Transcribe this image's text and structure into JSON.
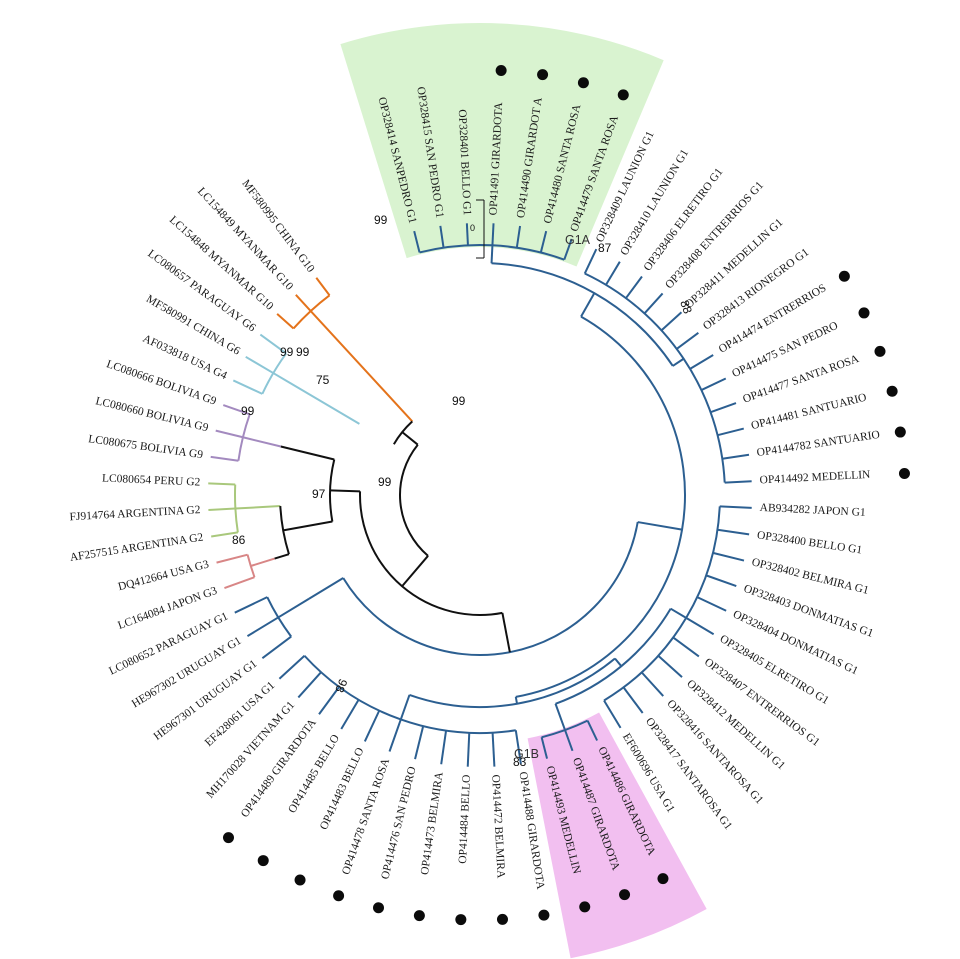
{
  "highlight_colors": {
    "G1A": "#d9f3d0",
    "G1B": "#f2bff0"
  },
  "genotype_colors": {
    "G1": "#2c5f91",
    "G10": "#e4731b",
    "G6": "#8cc6d6",
    "G9": "#a38abf",
    "G2": "#a9c87c",
    "G3": "#d88686",
    "backbone": "#111111"
  },
  "marker_color": "#0b0b0b",
  "scale_label": "0",
  "clade_labels": {
    "g1a": "G1A",
    "g1b": "G1B"
  },
  "support_values": [
    "99",
    "99",
    "75",
    "99",
    "99",
    "97",
    "99",
    "99",
    "86",
    "98",
    "87",
    "88",
    "83"
  ],
  "leaves": [
    {
      "label": "OP328414 SANPEDRO G1",
      "group": "G1",
      "marked": false
    },
    {
      "label": "OP328415 SAN PEDRO G1",
      "group": "G1",
      "marked": false
    },
    {
      "label": "OP328401 BELLO G1",
      "group": "G1",
      "marked": false
    },
    {
      "label": "OP41491 GIRARDOTA",
      "group": "G1",
      "marked": true
    },
    {
      "label": "OP414490 GIRARDOT A",
      "group": "G1",
      "marked": true
    },
    {
      "label": "OP414480 SANTA ROSA",
      "group": "G1",
      "marked": true
    },
    {
      "label": "OP414479 SANTA ROSA",
      "group": "G1",
      "marked": true
    },
    {
      "label": "OP328409 LAUNION G1",
      "group": "G1",
      "marked": false
    },
    {
      "label": "OP328410 LAUNION G1",
      "group": "G1",
      "marked": false
    },
    {
      "label": "OP328406 ELRETIRO G1",
      "group": "G1",
      "marked": false
    },
    {
      "label": "OP328408 ENTRERRIOS G1",
      "group": "G1",
      "marked": false
    },
    {
      "label": "OP328411 MEDELLIN G1",
      "group": "G1",
      "marked": false
    },
    {
      "label": "OP328413 RIONEGRO G1",
      "group": "G1",
      "marked": false
    },
    {
      "label": "OP414474 ENTRERRIOS",
      "group": "G1",
      "marked": true
    },
    {
      "label": "OP414475 SAN PEDRO",
      "group": "G1",
      "marked": true
    },
    {
      "label": "OP414477 SANTA ROSA",
      "group": "G1",
      "marked": true
    },
    {
      "label": "OP414481 SANTUARIO",
      "group": "G1",
      "marked": true
    },
    {
      "label": "OP4144782 SANTUARIO",
      "group": "G1",
      "marked": true
    },
    {
      "label": "OP414492 MEDELLIN",
      "group": "G1",
      "marked": true
    },
    {
      "label": "AB934282 JAPON G1",
      "group": "G1",
      "marked": false
    },
    {
      "label": "OP328400 BELLO G1",
      "group": "G1",
      "marked": false
    },
    {
      "label": "OP328402 BELMIRA G1",
      "group": "G1",
      "marked": false
    },
    {
      "label": "OP328403 DONMATIAS G1",
      "group": "G1",
      "marked": false
    },
    {
      "label": "OP328404 DONMATIAS G1",
      "group": "G1",
      "marked": false
    },
    {
      "label": "OP328405 ELRETIRO G1",
      "group": "G1",
      "marked": false
    },
    {
      "label": "OP328407 ENTRERRIOS G1",
      "group": "G1",
      "marked": false
    },
    {
      "label": "OP328412 MEDELLIN G1",
      "group": "G1",
      "marked": false
    },
    {
      "label": "OP328416 SANTAROSA G1",
      "group": "G1",
      "marked": false
    },
    {
      "label": "OP328417 SANTAROSA G1",
      "group": "G1",
      "marked": false
    },
    {
      "label": "EF600696 USA G1",
      "group": "G1",
      "marked": false
    },
    {
      "label": "OP414486 GIRARDOTA",
      "group": "G1",
      "marked": true
    },
    {
      "label": "OP414487 GIRARDOTA",
      "group": "G1",
      "marked": true
    },
    {
      "label": "OP414493 MEDELLIN",
      "group": "G1",
      "marked": true
    },
    {
      "label": "OP414488 GIRARDOTA",
      "group": "G1",
      "marked": true
    },
    {
      "label": "OP414472 BELMIRA",
      "group": "G1",
      "marked": true
    },
    {
      "label": "OP414484 BELLO",
      "group": "G1",
      "marked": true
    },
    {
      "label": "OP414473 BELMIRA",
      "group": "G1",
      "marked": true
    },
    {
      "label": "OP414476 SAN PEDRO",
      "group": "G1",
      "marked": true
    },
    {
      "label": "OP414478 SANTA ROSA",
      "group": "G1",
      "marked": true
    },
    {
      "label": "OP414483 BELLO",
      "group": "G1",
      "marked": true
    },
    {
      "label": "OP414485 BELLO",
      "group": "G1",
      "marked": true
    },
    {
      "label": "OP414489 GIRARDOTA",
      "group": "G1",
      "marked": true
    },
    {
      "label": "MH170028 VIETNAM G1",
      "group": "G1",
      "marked": false
    },
    {
      "label": "EF428061 USA G1",
      "group": "G1",
      "marked": false
    },
    {
      "label": "HE967301 URUGUAY G1",
      "group": "G1",
      "marked": false
    },
    {
      "label": "HE967302 URUGUAY G1",
      "group": "G1",
      "marked": false
    },
    {
      "label": "LC080652 PARAGUAY G1",
      "group": "G1",
      "marked": false
    },
    {
      "label": "LC164084 JAPON G3",
      "group": "G3",
      "marked": false
    },
    {
      "label": "DQ412664 USA G3",
      "group": "G3",
      "marked": false
    },
    {
      "label": "AF257515 ARGENTINA G2",
      "group": "G2",
      "marked": false
    },
    {
      "label": "FJ914764 ARGENTINA G2",
      "group": "G2",
      "marked": false
    },
    {
      "label": "LC080654 PERU G2",
      "group": "G2",
      "marked": false
    },
    {
      "label": "LC080675 BOLIVIA G9",
      "group": "G9",
      "marked": false
    },
    {
      "label": "LC080660 BOLIVIA G9",
      "group": "G9",
      "marked": false
    },
    {
      "label": "LC080666 BOLIVIA G9",
      "group": "G9",
      "marked": false
    },
    {
      "label": "AF033818 USA G4",
      "group": "G6",
      "marked": false
    },
    {
      "label": "MF580991 CHINA G6",
      "group": "G6",
      "marked": false
    },
    {
      "label": "LC080657 PARAGUAY G6",
      "group": "G6",
      "marked": false
    },
    {
      "label": "LC154848 MYANMAR G10",
      "group": "G10",
      "marked": false
    },
    {
      "label": "LC154849 MYANMAR G10",
      "group": "G10",
      "marked": false
    },
    {
      "label": "MF580995 CHINA G10",
      "group": "G10",
      "marked": false
    }
  ]
}
